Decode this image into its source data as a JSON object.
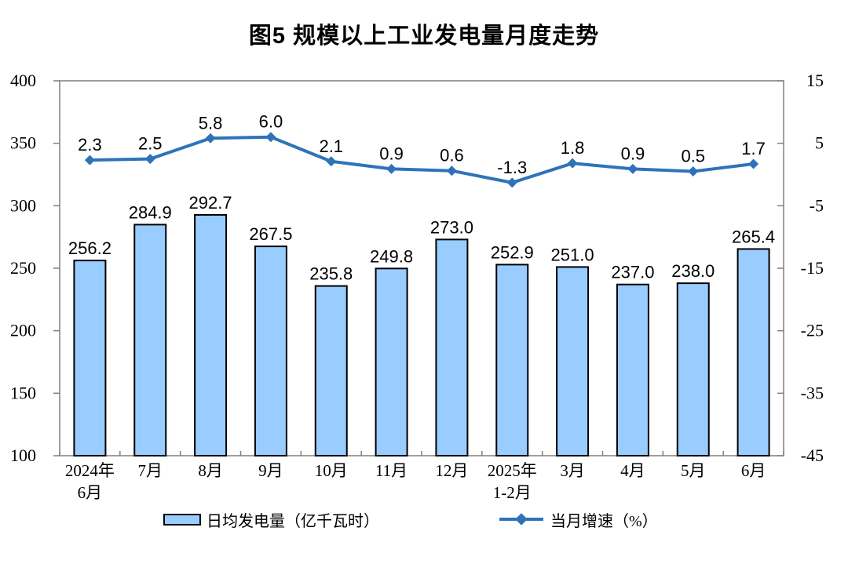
{
  "title": "图5 规模以上工业发电量月度走势",
  "chart_data": {
    "type": "combo-bar-line",
    "title": "图5 规模以上工业发电量月度走势",
    "categories": [
      [
        "2024年",
        "6月"
      ],
      [
        "7月"
      ],
      [
        "8月"
      ],
      [
        "9月"
      ],
      [
        "10月"
      ],
      [
        "11月"
      ],
      [
        "12月"
      ],
      [
        "2025年",
        "1-2月"
      ],
      [
        "3月"
      ],
      [
        "4月"
      ],
      [
        "5月"
      ],
      [
        "6月"
      ]
    ],
    "series": [
      {
        "name": "日均发电量（亿千瓦时）",
        "type": "bar",
        "axis": "left",
        "values": [
          256.2,
          284.9,
          292.7,
          267.5,
          235.8,
          249.8,
          273.0,
          252.9,
          251.0,
          237.0,
          238.0,
          265.4
        ]
      },
      {
        "name": "当月增速（%）",
        "type": "line",
        "axis": "right",
        "values": [
          2.3,
          2.5,
          5.8,
          6.0,
          2.1,
          0.9,
          0.6,
          -1.3,
          1.8,
          0.9,
          0.5,
          1.7
        ]
      }
    ],
    "left_axis": {
      "min": 100,
      "max": 400,
      "step": 50,
      "ticks": [
        400,
        350,
        300,
        250,
        200,
        150,
        100
      ]
    },
    "right_axis": {
      "min": -45,
      "max": 15,
      "step": 10,
      "ticks": [
        15,
        5,
        -5,
        -15,
        -25,
        -35,
        -45
      ]
    },
    "grid": false,
    "legend_position": "bottom",
    "xlabel": "",
    "ylabel_left": "",
    "ylabel_right": ""
  },
  "legend": {
    "bar_label": "日均发电量（亿千瓦时）",
    "line_label": "当月增速（%）"
  },
  "colors": {
    "bar_fill": "#99CCFF",
    "bar_border": "#000000",
    "line": "#2E73B9",
    "axis": "#7F7F7F",
    "text": "#000000",
    "background": "#FFFFFF"
  }
}
